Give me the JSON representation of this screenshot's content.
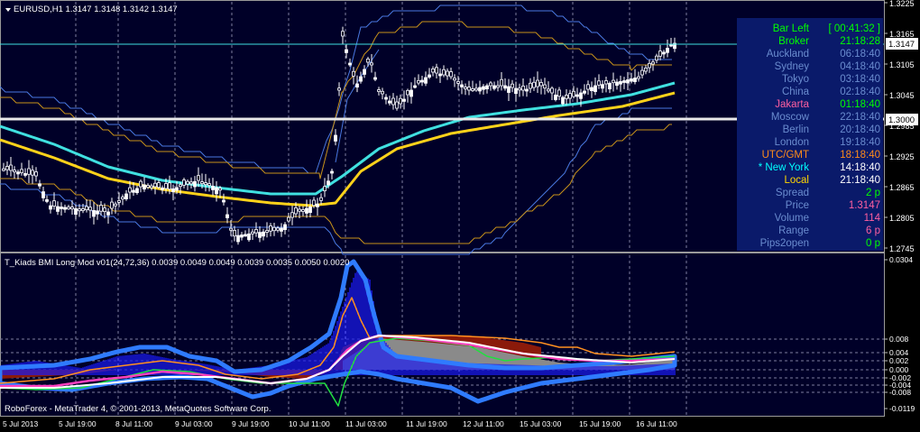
{
  "main_chart": {
    "title": "EURUSD,H1  1.3147 1.3148 1.3142 1.3147",
    "price_scale": [
      "1.3225",
      "1.3165",
      "1.3105",
      "1.3045",
      "1.2985",
      "1.2925",
      "1.2865",
      "1.2805",
      "1.2745"
    ],
    "current_price_tag": "1.3147",
    "level_tag": "1.3000",
    "info_panel": [
      {
        "label": "Bar Left",
        "value": "[ 00:41:32 ]",
        "color": "#00ff00"
      },
      {
        "label": "Broker",
        "value": "21:18:28",
        "color": "#00ff00"
      },
      {
        "label": "Auckland",
        "value": "06:18:40",
        "color": "#6a8ccf"
      },
      {
        "label": "Sydney",
        "value": "04:18:40",
        "color": "#6a8ccf"
      },
      {
        "label": "Tokyo",
        "value": "03:18:40",
        "color": "#6a8ccf"
      },
      {
        "label": "China",
        "value": "02:18:40",
        "color": "#6a8ccf"
      },
      {
        "label": "Jakarta",
        "value": "01:18:40",
        "color": "#ff5fa0",
        "value_color": "#00ff00"
      },
      {
        "label": "Moscow",
        "value": "22:18:40",
        "color": "#6a8ccf"
      },
      {
        "label": "Berlin",
        "value": "20:18:40",
        "color": "#6a8ccf"
      },
      {
        "label": "London",
        "value": "19:18:40",
        "color": "#6a8ccf"
      },
      {
        "label": "UTC/GMT",
        "value": "18:18:40",
        "color": "#ff8c1a"
      },
      {
        "label": "* New York",
        "value": "14:18:40",
        "color": "#00ffff",
        "value_color": "#ffffff"
      },
      {
        "label": "Local",
        "value": "21:18:40",
        "color": "#ffd700",
        "value_color": "#ffffff"
      },
      {
        "label": "Spread",
        "value": "2 p",
        "color": "#6a8ccf",
        "value_color": "#00ff00"
      },
      {
        "label": "Price",
        "value": "1.3147",
        "color": "#6a8ccf",
        "value_color": "#ff5fa0"
      },
      {
        "label": "Volume",
        "value": "114",
        "color": "#6a8ccf",
        "value_color": "#ff5fa0"
      },
      {
        "label": "Range",
        "value": "6 p",
        "color": "#6a8ccf",
        "value_color": "#ff5fa0"
      },
      {
        "label": "Pips2open",
        "value": "0 p",
        "color": "#6a8ccf",
        "value_color": "#00ff00"
      }
    ]
  },
  "sub_chart": {
    "title": "T_Kiads BMI Long Mod v01(24,72,36) 0.0039 0.0049 0.0049 0.0039 0.0035 0.0050 0.0020",
    "scale": [
      "0.0304",
      "0.008",
      "0.004",
      "0.002",
      "0.000",
      "-0.002",
      "-0.004",
      "-0.008",
      "-0.0119"
    ],
    "copyright": "RoboForex - MetaTrader 4, © 2001-2013, MetaQuotes Software Corp."
  },
  "time_axis": [
    "5 Jul 2013",
    "5 Jul 19:00",
    "8 Jul 11:00",
    "9 Jul 03:00",
    "9 Jul 19:00",
    "10 Jul 11:00",
    "11 Jul 03:00",
    "11 Jul 19:00",
    "12 Jul 11:00",
    "15 Jul 03:00",
    "15 Jul 19:00",
    "16 Jul 11:00"
  ],
  "colors": {
    "background": "#000028",
    "grid": "#7e7e9e",
    "candles": "#ffffff",
    "ma_fast": "#40e0e0",
    "ma_slow": "#ffd21a",
    "band_blue": "#4a78e0",
    "band_orange": "#c8921a",
    "histogram": "#1a1af0",
    "cloud_blue": "#2f7bff",
    "red_fill": "#8b1a0a",
    "orange_line": "#ff9020",
    "green_line": "#20e040",
    "magenta_line": "#ff40c0",
    "panel_bg": "#0a1a6a"
  }
}
